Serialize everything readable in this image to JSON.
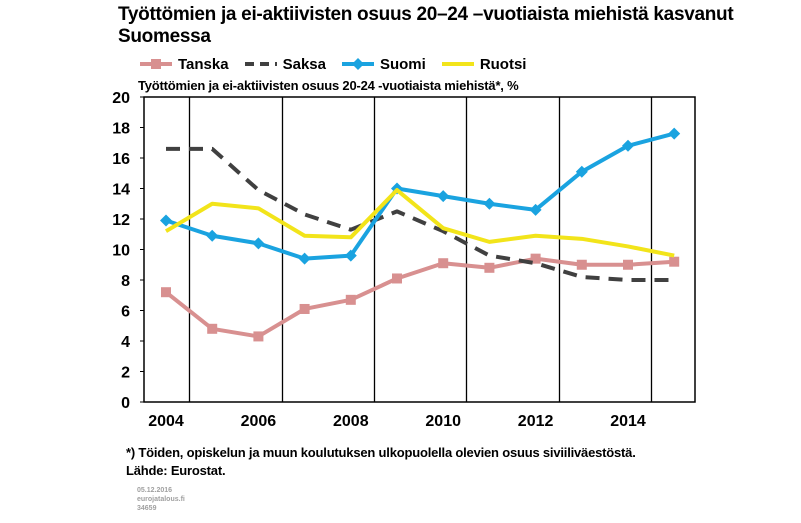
{
  "chart_data": {
    "type": "line",
    "title": "Työttömien ja ei-aktiivisten osuus 20–24 –vuotiaista miehistä kasvanut Suomessa",
    "subtitle": "Työttömien ja ei-aktiivisten osuus 20-24 -vuotiaista miehistä*, %",
    "x": [
      2004,
      2005,
      2006,
      2007,
      2008,
      2009,
      2010,
      2011,
      2012,
      2013,
      2014,
      2015
    ],
    "x_ticks": [
      "2004",
      "2006",
      "2008",
      "2010",
      "2012",
      "2014"
    ],
    "y_ticks": [
      "20",
      "18",
      "16",
      "14",
      "12",
      "10",
      "8",
      "6",
      "4",
      "2",
      "0"
    ],
    "ylim": [
      0,
      20
    ],
    "grid": "vertical",
    "legend_position": "top",
    "series": [
      {
        "name": "Tanska",
        "color": "#d89090",
        "style": "solid-square",
        "values": [
          7.2,
          4.8,
          4.3,
          6.1,
          6.7,
          8.1,
          9.1,
          8.8,
          9.4,
          9.0,
          9.0,
          9.2
        ]
      },
      {
        "name": "Saksa",
        "color": "#404040",
        "style": "dashed",
        "values": [
          16.6,
          16.6,
          13.9,
          12.3,
          11.3,
          12.5,
          11.2,
          9.6,
          9.1,
          8.2,
          8.0,
          8.0
        ]
      },
      {
        "name": "Suomi",
        "color": "#1aa3e0",
        "style": "solid-diamond",
        "values": [
          11.9,
          10.9,
          10.4,
          9.4,
          9.6,
          14.0,
          13.5,
          13.0,
          12.6,
          15.1,
          16.8,
          17.6
        ]
      },
      {
        "name": "Ruotsi",
        "color": "#f2e41a",
        "style": "solid",
        "values": [
          11.2,
          13.0,
          12.7,
          10.9,
          10.8,
          13.9,
          11.4,
          10.5,
          10.9,
          10.7,
          10.2,
          9.6
        ]
      }
    ],
    "footnote": "*) Töiden, opiskelun ja muun koulutuksen ulkopuolella olevien osuus siviiliväestöstä.",
    "source": "Lähde: Eurostat.",
    "meta": [
      "05.12.2016",
      "eurojatalous.fi",
      "34659"
    ]
  }
}
